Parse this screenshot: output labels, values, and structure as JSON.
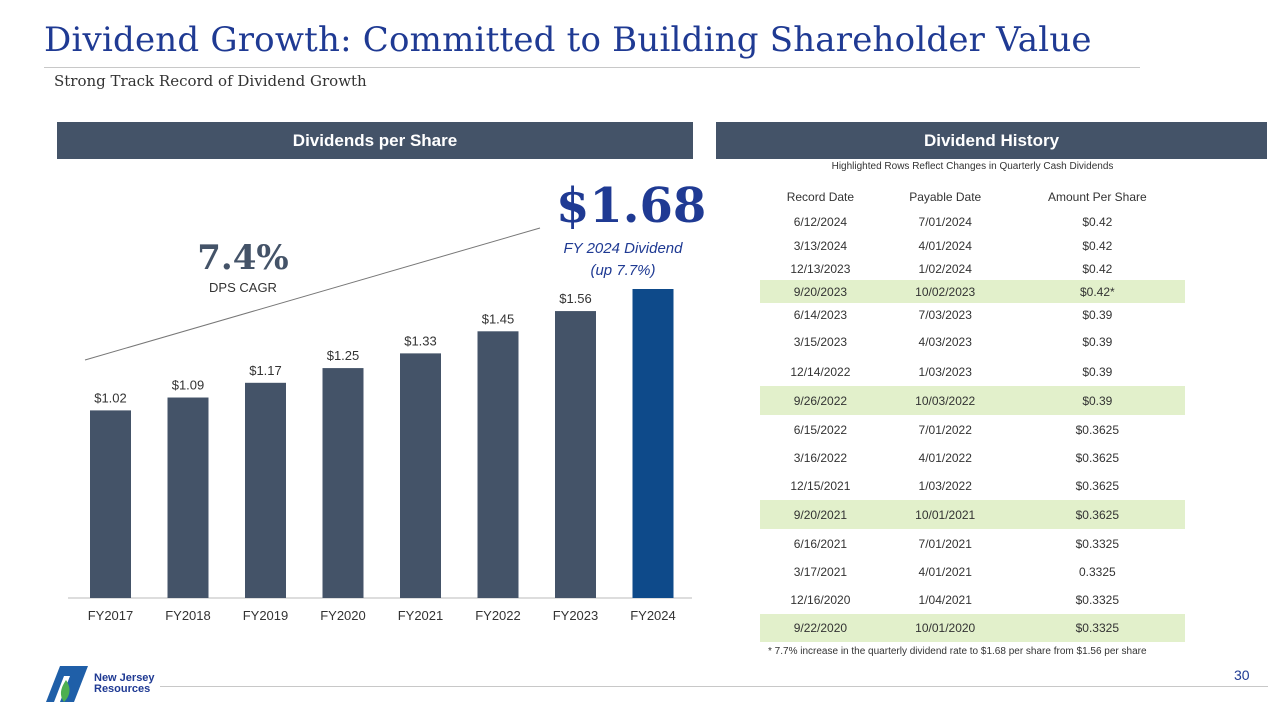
{
  "header": {
    "title": "Dividend Growth: Committed to Building Shareholder Value",
    "subtitle": "Strong Track Record of Dividend Growth"
  },
  "left_panel": {
    "title": "Dividends per Share",
    "highlight_value": "$1.68",
    "highlight_label_1": "FY 2024 Dividend",
    "highlight_label_2": "(up 7.7%)",
    "cagr_value": "7.4%",
    "cagr_label": "DPS CAGR"
  },
  "right_panel": {
    "title": "Dividend History",
    "note": "Highlighted Rows Reflect Changes in Quarterly Cash Dividends",
    "columns": [
      "Record Date",
      "Payable Date",
      "Amount Per Share"
    ],
    "rows": [
      {
        "record": "6/12/2024",
        "payable": "7/01/2024",
        "amount": "$0.42",
        "highlight": false
      },
      {
        "record": "3/13/2024",
        "payable": "4/01/2024",
        "amount": "$0.42",
        "highlight": false
      },
      {
        "record": "12/13/2023",
        "payable": "1/02/2024",
        "amount": "$0.42",
        "highlight": false
      },
      {
        "record": "9/20/2023",
        "payable": "10/02/2023",
        "amount": "$0.42*",
        "highlight": true
      },
      {
        "record": "6/14/2023",
        "payable": "7/03/2023",
        "amount": "$0.39",
        "highlight": false
      },
      {
        "record": "3/15/2023",
        "payable": "4/03/2023",
        "amount": "$0.39",
        "highlight": false
      },
      {
        "record": "12/14/2022",
        "payable": "1/03/2023",
        "amount": "$0.39",
        "highlight": false
      },
      {
        "record": "9/26/2022",
        "payable": "10/03/2022",
        "amount": "$0.39",
        "highlight": true
      },
      {
        "record": "6/15/2022",
        "payable": "7/01/2022",
        "amount": "$0.3625",
        "highlight": false
      },
      {
        "record": "3/16/2022",
        "payable": "4/01/2022",
        "amount": "$0.3625",
        "highlight": false
      },
      {
        "record": "12/15/2021",
        "payable": "1/03/2022",
        "amount": "$0.3625",
        "highlight": false
      },
      {
        "record": "9/20/2021",
        "payable": "10/01/2021",
        "amount": "$0.3625",
        "highlight": true
      },
      {
        "record": "6/16/2021",
        "payable": "7/01/2021",
        "amount": "$0.3325",
        "highlight": false
      },
      {
        "record": "3/17/2021",
        "payable": "4/01/2021",
        "amount": "0.3325",
        "highlight": false
      },
      {
        "record": "12/16/2020",
        "payable": "1/04/2021",
        "amount": "$0.3325",
        "highlight": false
      },
      {
        "record": "9/22/2020",
        "payable": "10/01/2020",
        "amount": "$0.3325",
        "highlight": true
      }
    ],
    "footnote": "* 7.7% increase in the quarterly dividend rate to $1.68 per share from $1.56 per share"
  },
  "chart_data": {
    "type": "bar",
    "title": "Dividends per Share",
    "categories": [
      "FY2017",
      "FY2018",
      "FY2019",
      "FY2020",
      "FY2021",
      "FY2022",
      "FY2023",
      "FY2024"
    ],
    "values": [
      1.02,
      1.09,
      1.17,
      1.25,
      1.33,
      1.45,
      1.56,
      1.68
    ],
    "data_labels": [
      "$1.02",
      "$1.09",
      "$1.17",
      "$1.25",
      "$1.33",
      "$1.45",
      "$1.56",
      ""
    ],
    "xlabel": "",
    "ylabel": "",
    "ylim": [
      0,
      1.68
    ],
    "bar_color": "#445368",
    "highlight_color": "#0e4a8a",
    "grid": false
  },
  "footer": {
    "company": "New Jersey Resources",
    "company_line_1": "New Jersey",
    "company_line_2": "Resources",
    "page_number": "30"
  },
  "colors": {
    "title": "#1f3a93",
    "header_bg": "#445368",
    "highlight_row": "#e2f0cb"
  }
}
